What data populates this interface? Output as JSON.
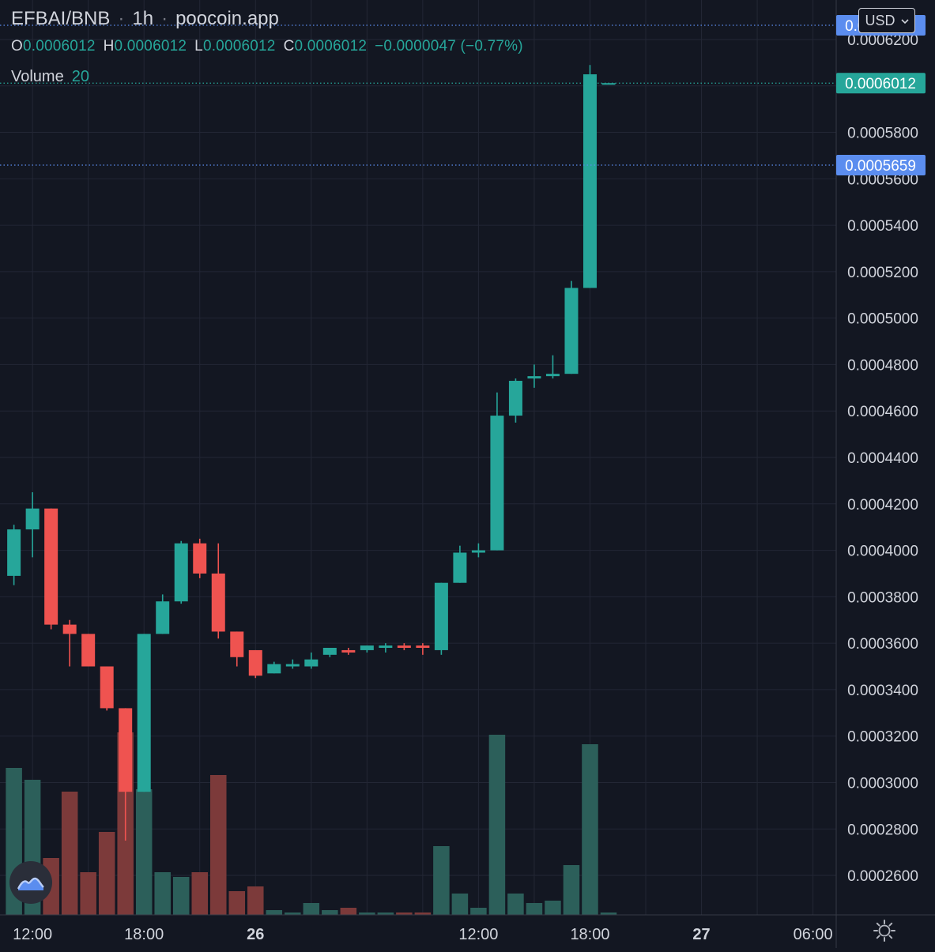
{
  "legend": {
    "symbol": "EFBAI/BNB",
    "interval": "1h",
    "source": "poocoin.app",
    "open_label": "O",
    "open": "0.0006012",
    "high_label": "H",
    "high": "0.0006012",
    "low_label": "L",
    "low": "0.0006012",
    "close_label": "C",
    "close": "0.0006012",
    "change": "−0.0000047 (−0.77%)",
    "volume_label": "Volume",
    "volume_value": "20"
  },
  "currency_selector": {
    "label": "USD",
    "icon": "chevron-down-icon"
  },
  "price_tags": [
    {
      "value": "0.0006261",
      "price": 0.0006261,
      "color": "#5b8def"
    },
    {
      "value": "0.0006012",
      "price": 0.0006012,
      "color": "#26a69a"
    },
    {
      "value": "0.0005659",
      "price": 0.0005659,
      "color": "#5b8def"
    }
  ],
  "colors": {
    "up": "#26a69a",
    "down": "#ef5350",
    "background": "#131722",
    "grid": "#232735",
    "accent": "#5b8def"
  },
  "chart_data": {
    "type": "candlestick",
    "interval": "1h",
    "y_axis": {
      "range": [
        0.000243,
        0.000637
      ],
      "ticks": [
        {
          "value": 0.00026,
          "label": "0.0002600"
        },
        {
          "value": 0.00028,
          "label": "0.0002800"
        },
        {
          "value": 0.0003,
          "label": "0.0003000"
        },
        {
          "value": 0.00032,
          "label": "0.0003200"
        },
        {
          "value": 0.00034,
          "label": "0.0003400"
        },
        {
          "value": 0.00036,
          "label": "0.0003600"
        },
        {
          "value": 0.00038,
          "label": "0.0003800"
        },
        {
          "value": 0.0004,
          "label": "0.0004000"
        },
        {
          "value": 0.00042,
          "label": "0.0004200"
        },
        {
          "value": 0.00044,
          "label": "0.0004400"
        },
        {
          "value": 0.00046,
          "label": "0.0004600"
        },
        {
          "value": 0.00048,
          "label": "0.0004800"
        },
        {
          "value": 0.0005,
          "label": "0.0005000"
        },
        {
          "value": 0.00052,
          "label": "0.0005200"
        },
        {
          "value": 0.00054,
          "label": "0.0005400"
        },
        {
          "value": 0.00056,
          "label": "0.0005600"
        },
        {
          "value": 0.00058,
          "label": "0.0005800"
        },
        {
          "value": 0.0006,
          "label": "0.0006000"
        },
        {
          "value": 0.00062,
          "label": "0.0006200"
        },
        {
          "value": 0.00064,
          "label": "0.0006400"
        }
      ]
    },
    "x_axis": {
      "range": [
        -0.75,
        44.25
      ],
      "ticks": [
        {
          "index": 1,
          "label": "12:00",
          "bold": false
        },
        {
          "index": 7,
          "label": "18:00",
          "bold": false
        },
        {
          "index": 13,
          "label": "26",
          "bold": true
        },
        {
          "index": 25,
          "label": "12:00",
          "bold": false
        },
        {
          "index": 31,
          "label": "18:00",
          "bold": false
        },
        {
          "index": 37,
          "label": "27",
          "bold": true
        },
        {
          "index": 43,
          "label": "06:00",
          "bold": false
        }
      ]
    },
    "candles": [
      {
        "i": 0,
        "o": 0.000389,
        "h": 0.000411,
        "l": 0.000385,
        "c": 0.000409,
        "v": 0.62
      },
      {
        "i": 1,
        "o": 0.000409,
        "h": 0.000425,
        "l": 0.000397,
        "c": 0.000418,
        "v": 0.57
      },
      {
        "i": 2,
        "o": 0.000418,
        "h": 0.000418,
        "l": 0.000366,
        "c": 0.000368,
        "v": 0.24
      },
      {
        "i": 3,
        "o": 0.000368,
        "h": 0.00037,
        "l": 0.00035,
        "c": 0.000364,
        "v": 0.52
      },
      {
        "i": 4,
        "o": 0.000364,
        "h": 0.000364,
        "l": 0.00035,
        "c": 0.00035,
        "v": 0.18
      },
      {
        "i": 5,
        "o": 0.00035,
        "h": 0.00035,
        "l": 0.000331,
        "c": 0.000332,
        "v": 0.35
      },
      {
        "i": 6,
        "o": 0.000332,
        "h": 0.000332,
        "l": 0.000275,
        "c": 0.000296,
        "v": 0.77
      },
      {
        "i": 7,
        "o": 0.000296,
        "h": 0.000364,
        "l": 0.000296,
        "c": 0.000364,
        "v": 0.53
      },
      {
        "i": 8,
        "o": 0.000364,
        "h": 0.000381,
        "l": 0.000364,
        "c": 0.000378,
        "v": 0.18
      },
      {
        "i": 9,
        "o": 0.000378,
        "h": 0.000404,
        "l": 0.000377,
        "c": 0.000403,
        "v": 0.16
      },
      {
        "i": 10,
        "o": 0.000403,
        "h": 0.000405,
        "l": 0.000388,
        "c": 0.00039,
        "v": 0.18
      },
      {
        "i": 11,
        "o": 0.00039,
        "h": 0.000403,
        "l": 0.000362,
        "c": 0.000365,
        "v": 0.59
      },
      {
        "i": 12,
        "o": 0.000365,
        "h": 0.000365,
        "l": 0.00035,
        "c": 0.000354,
        "v": 0.1
      },
      {
        "i": 13,
        "o": 0.000357,
        "h": 0.000357,
        "l": 0.000345,
        "c": 0.000346,
        "v": 0.12
      },
      {
        "i": 14,
        "o": 0.000347,
        "h": 0.000352,
        "l": 0.000347,
        "c": 0.000351,
        "v": 0.02
      },
      {
        "i": 15,
        "o": 0.00035,
        "h": 0.000353,
        "l": 0.000349,
        "c": 0.000351,
        "v": 0.01
      },
      {
        "i": 16,
        "o": 0.00035,
        "h": 0.000356,
        "l": 0.000349,
        "c": 0.000353,
        "v": 0.05
      },
      {
        "i": 17,
        "o": 0.000355,
        "h": 0.000358,
        "l": 0.000354,
        "c": 0.000358,
        "v": 0.02
      },
      {
        "i": 18,
        "o": 0.000357,
        "h": 0.000358,
        "l": 0.000355,
        "c": 0.000356,
        "v": 0.03
      },
      {
        "i": 19,
        "o": 0.000357,
        "h": 0.000359,
        "l": 0.000356,
        "c": 0.000359,
        "v": 0.01
      },
      {
        "i": 20,
        "o": 0.000358,
        "h": 0.00036,
        "l": 0.000356,
        "c": 0.000359,
        "v": 0.01
      },
      {
        "i": 21,
        "o": 0.000359,
        "h": 0.00036,
        "l": 0.000357,
        "c": 0.000358,
        "v": 0.01
      },
      {
        "i": 22,
        "o": 0.000359,
        "h": 0.00036,
        "l": 0.000355,
        "c": 0.000358,
        "v": 0.01
      },
      {
        "i": 23,
        "o": 0.000357,
        "h": 0.000386,
        "l": 0.000355,
        "c": 0.000386,
        "v": 0.29
      },
      {
        "i": 24,
        "o": 0.000386,
        "h": 0.000402,
        "l": 0.000386,
        "c": 0.000399,
        "v": 0.09
      },
      {
        "i": 25,
        "o": 0.000399,
        "h": 0.000403,
        "l": 0.000397,
        "c": 0.0004,
        "v": 0.03
      },
      {
        "i": 26,
        "o": 0.0004,
        "h": 0.000468,
        "l": 0.0004,
        "c": 0.000458,
        "v": 0.76
      },
      {
        "i": 27,
        "o": 0.000458,
        "h": 0.000474,
        "l": 0.000455,
        "c": 0.000473,
        "v": 0.09
      },
      {
        "i": 28,
        "o": 0.000474,
        "h": 0.00048,
        "l": 0.00047,
        "c": 0.000475,
        "v": 0.05
      },
      {
        "i": 29,
        "o": 0.000475,
        "h": 0.000484,
        "l": 0.000474,
        "c": 0.000476,
        "v": 0.06
      },
      {
        "i": 30,
        "o": 0.000476,
        "h": 0.000516,
        "l": 0.000476,
        "c": 0.000513,
        "v": 0.21
      },
      {
        "i": 31,
        "o": 0.000513,
        "h": 0.000609,
        "l": 0.000513,
        "c": 0.000605,
        "v": 0.72
      },
      {
        "i": 32,
        "o": 0.0006012,
        "h": 0.0006012,
        "l": 0.0006012,
        "c": 0.0006012,
        "v": 0.01
      }
    ]
  }
}
